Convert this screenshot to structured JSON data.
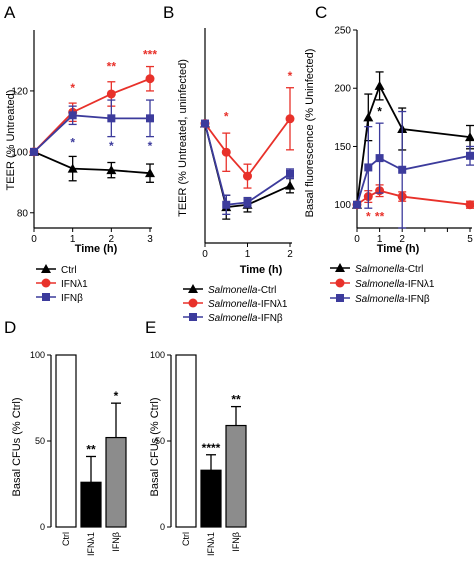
{
  "colors": {
    "ctrl": "#000000",
    "ifnl1": "#e8312a",
    "ifnb": "#3c3b9c",
    "bar_ctrl": "#ffffff",
    "bar_ifnl1": "#000000",
    "bar_ifnb": "#8c8c8c"
  },
  "chart_data": [
    {
      "panel": "A",
      "type": "line",
      "xlabel": "Time (h)",
      "ylabel": "TEER (% Untreated)",
      "xlim": [
        0,
        3
      ],
      "ylim": [
        75,
        140
      ],
      "xticks": [
        0,
        1,
        2,
        3
      ],
      "yticks": [
        80,
        100,
        120
      ],
      "legend": "below",
      "series": [
        {
          "name": "Ctrl",
          "color": "#000000",
          "marker": "triangle",
          "x": [
            0,
            1,
            2,
            3
          ],
          "y": [
            100,
            94.5,
            94,
            93
          ],
          "err": [
            0,
            4,
            2.5,
            3
          ]
        },
        {
          "name": "IFNλ1",
          "color": "#e8312a",
          "marker": "circle",
          "x": [
            0,
            1,
            2,
            3
          ],
          "y": [
            100,
            113,
            119,
            124
          ],
          "err": [
            0,
            3,
            4,
            4
          ]
        },
        {
          "name": "IFNβ",
          "color": "#3c3b9c",
          "marker": "square",
          "x": [
            0,
            1,
            2,
            3
          ],
          "y": [
            100,
            112,
            111,
            111
          ],
          "err": [
            0,
            3,
            6,
            6
          ]
        }
      ],
      "annotations": [
        {
          "x": 1,
          "y": 121,
          "text": "*",
          "color": "#e8312a"
        },
        {
          "x": 1,
          "y": 103,
          "text": "*",
          "color": "#3c3b9c"
        },
        {
          "x": 2,
          "y": 128,
          "text": "**",
          "color": "#e8312a"
        },
        {
          "x": 2,
          "y": 102,
          "text": "*",
          "color": "#3c3b9c"
        },
        {
          "x": 3,
          "y": 132,
          "text": "***",
          "color": "#e8312a"
        },
        {
          "x": 3,
          "y": 102,
          "text": "*",
          "color": "#3c3b9c"
        }
      ]
    },
    {
      "panel": "B",
      "type": "line",
      "xlabel": "Time (h)",
      "ylabel": "TEER (% Untreated, uninfected)",
      "xlim": [
        0,
        2
      ],
      "ylim": [
        50,
        140
      ],
      "xticks": [
        0,
        1,
        2
      ],
      "yticks": [],
      "legend": "below",
      "series": [
        {
          "name": "Salmonella-Ctrl",
          "color": "#000000",
          "marker": "triangle",
          "x": [
            0,
            0.5,
            1,
            2
          ],
          "y": [
            100,
            65,
            66,
            74
          ],
          "err": [
            0,
            5,
            3,
            3
          ]
        },
        {
          "name": "Salmonella-IFNλ1",
          "color": "#e8312a",
          "marker": "circle",
          "x": [
            0,
            0.5,
            1,
            2
          ],
          "y": [
            100,
            88,
            78,
            102
          ],
          "err": [
            0,
            8,
            5,
            13
          ]
        },
        {
          "name": "Salmonella-IFNβ",
          "color": "#3c3b9c",
          "marker": "square",
          "x": [
            0,
            0.5,
            1,
            2
          ],
          "y": [
            100,
            66,
            67,
            79
          ],
          "err": [
            0,
            4,
            2,
            2
          ]
        }
      ],
      "annotations": [
        {
          "x": 0.5,
          "y": 103,
          "text": "*",
          "color": "#e8312a"
        },
        {
          "x": 2,
          "y": 120,
          "text": "*",
          "color": "#e8312a"
        }
      ]
    },
    {
      "panel": "C",
      "type": "line",
      "xlabel": "Time (h)",
      "ylabel": "Basal fluorescence (% Uninfected)",
      "xlim": [
        0,
        5
      ],
      "ylim": [
        80,
        250
      ],
      "xticks": [
        0,
        1,
        2,
        3,
        4,
        5
      ],
      "xtick_labels": [
        "0",
        "1",
        "2",
        "",
        "",
        "5"
      ],
      "yticks": [
        100,
        150,
        200,
        250
      ],
      "legend": "below",
      "series": [
        {
          "name": "Salmonella-Ctrl",
          "color": "#000000",
          "marker": "triangle",
          "x": [
            0,
            0.5,
            1,
            2,
            5
          ],
          "y": [
            100,
            175,
            202,
            165,
            158
          ],
          "err": [
            0,
            20,
            12,
            18,
            10
          ]
        },
        {
          "name": "Salmonella-IFNλ1",
          "color": "#e8312a",
          "marker": "circle",
          "x": [
            0,
            0.5,
            1,
            2,
            5
          ],
          "y": [
            100,
            107,
            112,
            107,
            100
          ],
          "err": [
            0,
            5,
            5,
            4,
            3
          ]
        },
        {
          "name": "Salmonella-IFNβ",
          "color": "#3c3b9c",
          "marker": "square",
          "x": [
            0,
            0.5,
            1,
            2,
            5
          ],
          "y": [
            100,
            132,
            140,
            130,
            142
          ],
          "err": [
            0,
            35,
            30,
            50,
            8
          ]
        }
      ],
      "annotations": [
        {
          "x": 1,
          "y": 180,
          "text": "*",
          "color": "#000000"
        },
        {
          "x": 0.5,
          "y": 90,
          "text": "*",
          "color": "#e8312a"
        },
        {
          "x": 1,
          "y": 90,
          "text": "**",
          "color": "#e8312a"
        }
      ]
    },
    {
      "panel": "D",
      "type": "bar",
      "ylabel": "Basal CFUs (% Ctrl)",
      "ylim": [
        0,
        100
      ],
      "yticks": [
        0,
        50,
        100
      ],
      "categories": [
        "Ctrl",
        "IFNλ1",
        "IFNβ"
      ],
      "values": [
        100,
        26,
        52
      ],
      "errors": [
        0,
        15,
        20
      ],
      "bar_colors": [
        "#ffffff",
        "#000000",
        "#8c8c8c"
      ],
      "stars": [
        "",
        "**",
        "*"
      ]
    },
    {
      "panel": "E",
      "type": "bar",
      "ylabel": "Basal CFUs (% Ctrl)",
      "ylim": [
        0,
        100
      ],
      "yticks": [
        0,
        50,
        100
      ],
      "categories": [
        "Ctrl",
        "IFNλ1",
        "IFNβ"
      ],
      "values": [
        100,
        33,
        59
      ],
      "errors": [
        0,
        9,
        11
      ],
      "bar_colors": [
        "#ffffff",
        "#000000",
        "#8c8c8c"
      ],
      "stars": [
        "",
        "****",
        "**"
      ]
    }
  ]
}
